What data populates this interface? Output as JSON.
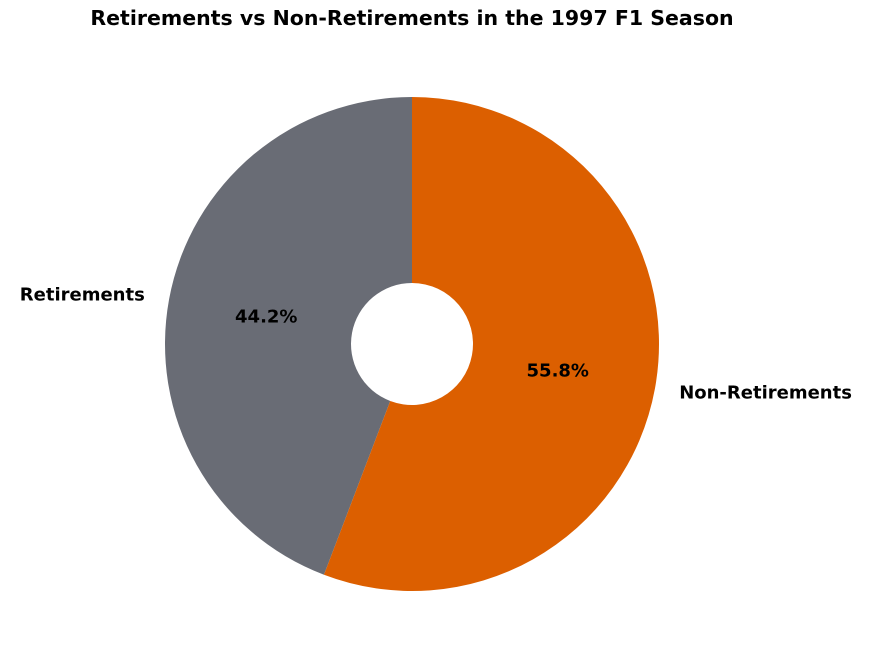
{
  "chart_data": {
    "type": "pie",
    "donut": true,
    "title": "Retirements vs Non-Retirements in the 1997 F1 Season",
    "categories": [
      "Retirements",
      "Non-Retirements"
    ],
    "values": [
      44.2,
      55.8
    ],
    "value_labels": [
      "44.2%",
      "55.8%"
    ],
    "colors": [
      "#696c75",
      "#dc5f00"
    ],
    "start_angle_deg": 90,
    "direction": "clockwise-from-top: Non-Retirements first"
  }
}
